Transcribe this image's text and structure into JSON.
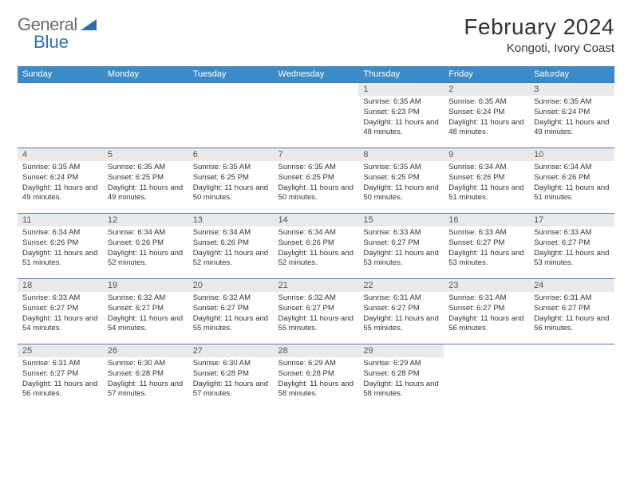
{
  "brand": {
    "part1": "General",
    "part2": "Blue"
  },
  "title": "February 2024",
  "location": "Kongoti, Ivory Coast",
  "colors": {
    "header_bg": "#3b8bc9",
    "header_text": "#ffffff",
    "daynum_bg": "#e9e9e9",
    "row_border": "#4a7aa8",
    "brand_gray": "#6b6b6b",
    "brand_blue": "#2b6fb3",
    "text": "#333333"
  },
  "weekdays": [
    "Sunday",
    "Monday",
    "Tuesday",
    "Wednesday",
    "Thursday",
    "Friday",
    "Saturday"
  ],
  "weeks": [
    [
      null,
      null,
      null,
      null,
      {
        "n": "1",
        "sr": "6:35 AM",
        "ss": "6:23 PM",
        "dl": "11 hours and 48 minutes."
      },
      {
        "n": "2",
        "sr": "6:35 AM",
        "ss": "6:24 PM",
        "dl": "11 hours and 48 minutes."
      },
      {
        "n": "3",
        "sr": "6:35 AM",
        "ss": "6:24 PM",
        "dl": "11 hours and 49 minutes."
      }
    ],
    [
      {
        "n": "4",
        "sr": "6:35 AM",
        "ss": "6:24 PM",
        "dl": "11 hours and 49 minutes."
      },
      {
        "n": "5",
        "sr": "6:35 AM",
        "ss": "6:25 PM",
        "dl": "11 hours and 49 minutes."
      },
      {
        "n": "6",
        "sr": "6:35 AM",
        "ss": "6:25 PM",
        "dl": "11 hours and 50 minutes."
      },
      {
        "n": "7",
        "sr": "6:35 AM",
        "ss": "6:25 PM",
        "dl": "11 hours and 50 minutes."
      },
      {
        "n": "8",
        "sr": "6:35 AM",
        "ss": "6:25 PM",
        "dl": "11 hours and 50 minutes."
      },
      {
        "n": "9",
        "sr": "6:34 AM",
        "ss": "6:26 PM",
        "dl": "11 hours and 51 minutes."
      },
      {
        "n": "10",
        "sr": "6:34 AM",
        "ss": "6:26 PM",
        "dl": "11 hours and 51 minutes."
      }
    ],
    [
      {
        "n": "11",
        "sr": "6:34 AM",
        "ss": "6:26 PM",
        "dl": "11 hours and 51 minutes."
      },
      {
        "n": "12",
        "sr": "6:34 AM",
        "ss": "6:26 PM",
        "dl": "11 hours and 52 minutes."
      },
      {
        "n": "13",
        "sr": "6:34 AM",
        "ss": "6:26 PM",
        "dl": "11 hours and 52 minutes."
      },
      {
        "n": "14",
        "sr": "6:34 AM",
        "ss": "6:26 PM",
        "dl": "11 hours and 52 minutes."
      },
      {
        "n": "15",
        "sr": "6:33 AM",
        "ss": "6:27 PM",
        "dl": "11 hours and 53 minutes."
      },
      {
        "n": "16",
        "sr": "6:33 AM",
        "ss": "6:27 PM",
        "dl": "11 hours and 53 minutes."
      },
      {
        "n": "17",
        "sr": "6:33 AM",
        "ss": "6:27 PM",
        "dl": "11 hours and 53 minutes."
      }
    ],
    [
      {
        "n": "18",
        "sr": "6:33 AM",
        "ss": "6:27 PM",
        "dl": "11 hours and 54 minutes."
      },
      {
        "n": "19",
        "sr": "6:32 AM",
        "ss": "6:27 PM",
        "dl": "11 hours and 54 minutes."
      },
      {
        "n": "20",
        "sr": "6:32 AM",
        "ss": "6:27 PM",
        "dl": "11 hours and 55 minutes."
      },
      {
        "n": "21",
        "sr": "6:32 AM",
        "ss": "6:27 PM",
        "dl": "11 hours and 55 minutes."
      },
      {
        "n": "22",
        "sr": "6:31 AM",
        "ss": "6:27 PM",
        "dl": "11 hours and 55 minutes."
      },
      {
        "n": "23",
        "sr": "6:31 AM",
        "ss": "6:27 PM",
        "dl": "11 hours and 56 minutes."
      },
      {
        "n": "24",
        "sr": "6:31 AM",
        "ss": "6:27 PM",
        "dl": "11 hours and 56 minutes."
      }
    ],
    [
      {
        "n": "25",
        "sr": "6:31 AM",
        "ss": "6:27 PM",
        "dl": "11 hours and 56 minutes."
      },
      {
        "n": "26",
        "sr": "6:30 AM",
        "ss": "6:28 PM",
        "dl": "11 hours and 57 minutes."
      },
      {
        "n": "27",
        "sr": "6:30 AM",
        "ss": "6:28 PM",
        "dl": "11 hours and 57 minutes."
      },
      {
        "n": "28",
        "sr": "6:29 AM",
        "ss": "6:28 PM",
        "dl": "11 hours and 58 minutes."
      },
      {
        "n": "29",
        "sr": "6:29 AM",
        "ss": "6:28 PM",
        "dl": "11 hours and 58 minutes."
      },
      null,
      null
    ]
  ],
  "labels": {
    "sunrise": "Sunrise:",
    "sunset": "Sunset:",
    "daylight": "Daylight:"
  }
}
